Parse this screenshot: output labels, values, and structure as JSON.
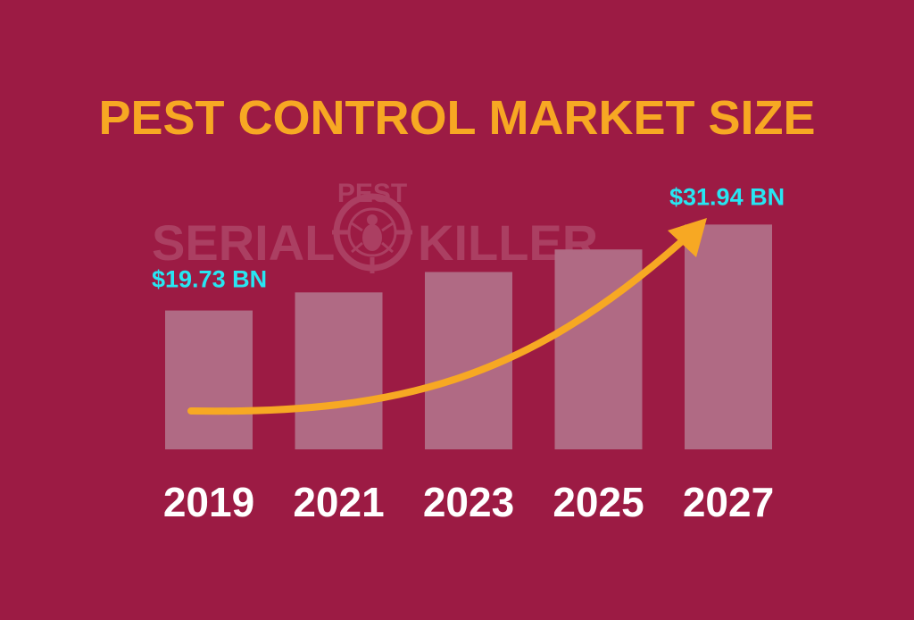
{
  "colors": {
    "background": "#9c1b44",
    "title": "#f7a823",
    "bar": "#b06a84",
    "arrow": "#f7a823",
    "value_label": "#27e6f2",
    "year_label": "#ffffff",
    "watermark": "#ab3f62"
  },
  "watermark": {
    "left_text": "SERIAL",
    "right_text": "KILLER",
    "badge_text": "PEST",
    "icon": "bug-crosshair-icon"
  },
  "chart_data": {
    "type": "bar",
    "title": "PEST CONTROL MARKET SIZE",
    "xlabel": "",
    "ylabel": "",
    "ylim": [
      0,
      33
    ],
    "grid": false,
    "categories": [
      "2019",
      "2021",
      "2023",
      "2025",
      "2027"
    ],
    "values": [
      19.73,
      22.3,
      25.2,
      28.4,
      31.94
    ],
    "annotations": [
      {
        "category": "2019",
        "text": "$19.73 BN"
      },
      {
        "category": "2027",
        "text": "$31.94 BN"
      }
    ],
    "trend_arrow": {
      "from": "2019",
      "to": "2027",
      "direction": "up"
    }
  }
}
